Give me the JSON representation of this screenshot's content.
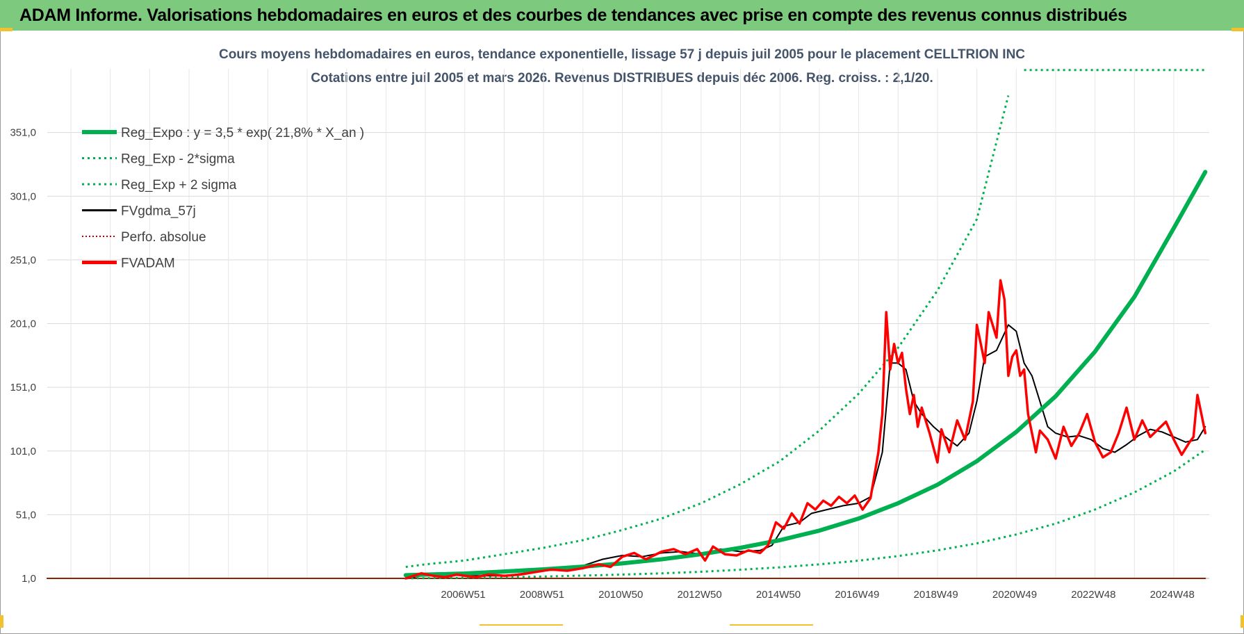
{
  "header": {
    "title": "ADAM Informe. Valorisations hebdomadaires en euros et des courbes de tendances avec prise en compte des revenus connus distribués"
  },
  "colors": {
    "header_bg": "#7dc97d",
    "reg_expo": "#00b050",
    "price": "#ff0000",
    "smooth": "#000000",
    "grid": "#d9d9d9"
  },
  "chart_data": {
    "type": "line",
    "title": "Cours moyens hebdomadaires en euros, tendance exponentielle, lissage 57 j depuis juil 2005 pour le placement CELLTRION INC",
    "subtitle": "Cotations entre juil 2005 et mars 2026. Revenus DISTRIBUES depuis déc 2006. Reg. croiss. : 2,1/20.",
    "xlabel": "",
    "ylabel": "",
    "ylim": [
      1,
      401
    ],
    "y_ticks": [
      "1,0",
      "51,0",
      "101,0",
      "151,0",
      "201,0",
      "251,0",
      "301,0",
      "351,0"
    ],
    "y_tick_values": [
      1,
      51,
      101,
      151,
      201,
      251,
      301,
      351
    ],
    "xlim": [
      1996.4,
      2025.9
    ],
    "x_ticks": [
      "2006W51",
      "2008W51",
      "2010W50",
      "2012W50",
      "2014W50",
      "2016W49",
      "2018W49",
      "2020W49",
      "2022W48",
      "2024W48"
    ],
    "x_tick_values": [
      2006.96,
      2008.96,
      2010.96,
      2012.96,
      2014.96,
      2016.96,
      2018.96,
      2020.96,
      2022.96,
      2024.96
    ],
    "gridlines_x": [
      1997,
      1998,
      1999,
      2000,
      2001,
      2002,
      2003,
      2004,
      2005,
      2006,
      2007,
      2008,
      2009,
      2010,
      2011,
      2012,
      2013,
      2014,
      2015,
      2016,
      2017,
      2018,
      2019,
      2020,
      2021,
      2022,
      2023,
      2024,
      2025
    ],
    "legend": [
      {
        "label": "Reg_Expo : y = 3,5 * exp( 21,8% *  X_an )",
        "color": "#00b050",
        "style": "solid-thick"
      },
      {
        "label": "Reg_Exp - 2*sigma",
        "color": "#00b050",
        "style": "dotted"
      },
      {
        "label": "Reg_Exp + 2 sigma",
        "color": "#00b050",
        "style": "dotted"
      },
      {
        "label": "FVgdma_57j",
        "color": "#000000",
        "style": "solid"
      },
      {
        "label": "Perfo. absolue",
        "color": "#c00000",
        "style": "dotted"
      },
      {
        "label": "FVADAM",
        "color": "#ff0000",
        "style": "solid-thick"
      }
    ],
    "series": [
      {
        "name": "Reg_Expo : y = 3,5 * exp( 21,8% *  X_an )",
        "x": [
          2005.5,
          2007,
          2008,
          2009,
          2010,
          2011,
          2012,
          2013,
          2014,
          2015,
          2016,
          2017,
          2018,
          2019,
          2020,
          2021,
          2022,
          2023,
          2024,
          2025,
          2025.8
        ],
        "values": [
          3.5,
          4.8,
          6.4,
          8.1,
          10.2,
          12.8,
          16,
          20,
          25,
          31,
          38.5,
          48,
          60,
          74.5,
          93,
          116,
          144,
          179,
          222,
          276,
          320
        ]
      },
      {
        "name": "Reg_Exp - 2*sigma",
        "x": [
          2005.5,
          2007,
          2008,
          2009,
          2010,
          2011,
          2012,
          2013,
          2014,
          2015,
          2016,
          2017,
          2018,
          2019,
          2020,
          2021,
          2022,
          2023,
          2024,
          2025,
          2025.8
        ],
        "values": [
          1.0,
          1.5,
          1.9,
          2.5,
          3.2,
          4.0,
          5.0,
          6.2,
          7.8,
          9.7,
          12.0,
          14.9,
          18.5,
          23.0,
          28.5,
          35.5,
          44.0,
          55.0,
          68.5,
          85.0,
          102
        ]
      },
      {
        "name": "Reg_Exp + 2 sigma",
        "x": [
          2005.5,
          2006,
          2007,
          2008,
          2009,
          2010,
          2011,
          2012,
          2013,
          2014,
          2015,
          2016,
          2017,
          2018,
          2019,
          2020,
          2020.8
        ],
        "values": [
          10,
          12,
          15,
          20,
          25,
          31,
          39,
          48,
          60,
          75,
          93,
          117,
          146,
          182,
          227,
          283,
          380
        ]
      },
      {
        "name": "Reg_Exp + 2 sigma (au-delà de l'échelle)",
        "x": [
          2021.2,
          2025.8
        ],
        "values": [
          400,
          400
        ]
      },
      {
        "name": "FVgdma_57j",
        "x": [
          1996.4,
          2005.5,
          2005.9,
          2006.5,
          2007,
          2007.5,
          2008,
          2008.5,
          2009,
          2009.5,
          2010,
          2010.5,
          2011,
          2011.5,
          2012,
          2012.5,
          2013,
          2013.5,
          2014,
          2014.5,
          2014.8,
          2015.1,
          2015.5,
          2015.8,
          2016.2,
          2016.6,
          2017,
          2017.3,
          2017.6,
          2017.8,
          2018,
          2018.2,
          2018.4,
          2018.6,
          2018.9,
          2019.2,
          2019.5,
          2019.8,
          2020,
          2020.2,
          2020.5,
          2020.8,
          2021,
          2021.2,
          2021.4,
          2021.6,
          2021.8,
          2022,
          2022.3,
          2022.6,
          2022.9,
          2023.2,
          2023.5,
          2023.8,
          2024.1,
          2024.4,
          2024.7,
          2025,
          2025.3,
          2025.6,
          2025.8
        ],
        "values": [
          1,
          1,
          3,
          4,
          3,
          3,
          3,
          5,
          7,
          8,
          11,
          16,
          19,
          18,
          21,
          22,
          20,
          24,
          22,
          23,
          27,
          42,
          45,
          52,
          55,
          58,
          60,
          65,
          100,
          170,
          170,
          165,
          140,
          130,
          120,
          112,
          105,
          115,
          140,
          175,
          180,
          200,
          195,
          170,
          160,
          140,
          120,
          115,
          112,
          113,
          110,
          103,
          100,
          106,
          113,
          118,
          116,
          112,
          108,
          110,
          120
        ]
      },
      {
        "name": "Perfo. absolue",
        "x": [
          1996.4,
          2025.8
        ],
        "values": [
          1,
          1
        ]
      },
      {
        "name": "FVADAM",
        "x": [
          2005.5,
          2005.7,
          2005.9,
          2006.2,
          2006.5,
          2006.8,
          2007,
          2007.3,
          2007.6,
          2008,
          2008.4,
          2008.8,
          2009.2,
          2009.6,
          2010,
          2010.4,
          2010.7,
          2011,
          2011.3,
          2011.6,
          2012,
          2012.3,
          2012.6,
          2012.9,
          2013.1,
          2013.3,
          2013.6,
          2013.9,
          2014.2,
          2014.5,
          2014.7,
          2014.9,
          2015.1,
          2015.3,
          2015.5,
          2015.7,
          2015.9,
          2016.1,
          2016.3,
          2016.5,
          2016.7,
          2016.9,
          2017.1,
          2017.3,
          2017.5,
          2017.6,
          2017.7,
          2017.8,
          2017.9,
          2018,
          2018.1,
          2018.2,
          2018.3,
          2018.4,
          2018.5,
          2018.6,
          2018.8,
          2019,
          2019.1,
          2019.3,
          2019.5,
          2019.7,
          2019.9,
          2020,
          2020.1,
          2020.2,
          2020.3,
          2020.4,
          2020.5,
          2020.6,
          2020.7,
          2020.8,
          2020.9,
          2021,
          2021.1,
          2021.2,
          2021.3,
          2021.4,
          2021.5,
          2021.6,
          2021.8,
          2022,
          2022.2,
          2022.4,
          2022.6,
          2022.8,
          2023,
          2023.2,
          2023.4,
          2023.6,
          2023.8,
          2024,
          2024.2,
          2024.4,
          2024.6,
          2024.8,
          2025,
          2025.2,
          2025.4,
          2025.5,
          2025.6,
          2025.7,
          2025.8
        ],
        "values": [
          1,
          3,
          5,
          3,
          2,
          4,
          3,
          2,
          4,
          3,
          4,
          6,
          8,
          7,
          9,
          12,
          10,
          18,
          21,
          16,
          22,
          24,
          20,
          24,
          15,
          26,
          20,
          19,
          23,
          21,
          27,
          45,
          40,
          52,
          44,
          60,
          55,
          62,
          58,
          65,
          60,
          66,
          55,
          64,
          100,
          130,
          210,
          165,
          185,
          170,
          178,
          150,
          130,
          145,
          120,
          135,
          115,
          92,
          118,
          100,
          125,
          110,
          140,
          200,
          185,
          170,
          210,
          200,
          190,
          235,
          220,
          160,
          175,
          180,
          160,
          165,
          130,
          115,
          100,
          117,
          110,
          95,
          120,
          105,
          115,
          130,
          108,
          96,
          100,
          115,
          135,
          110,
          125,
          112,
          118,
          124,
          110,
          98,
          108,
          112,
          145,
          130,
          115
        ]
      }
    ]
  }
}
